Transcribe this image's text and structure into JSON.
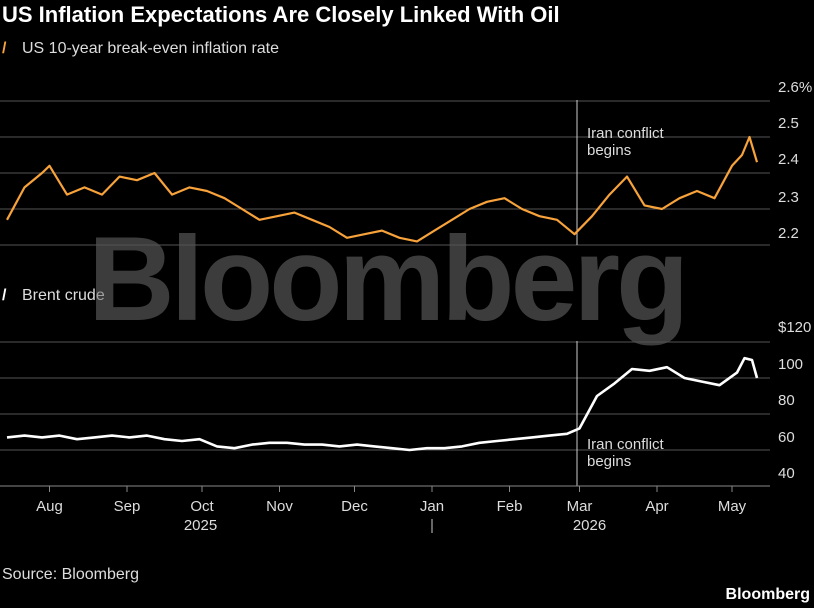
{
  "title": "US Inflation Expectations Are Closely Linked With Oil",
  "source": "Source: Bloomberg",
  "brand": "Bloomberg",
  "watermark": "Bloomberg",
  "colors": {
    "breakeven": "#f7a23b",
    "brent": "#ffffff",
    "grid": "#555555",
    "background": "#000000"
  },
  "chart_data": [
    {
      "type": "line",
      "series": [
        {
          "name": "US 10-year break-even inflation rate",
          "color": "#f7a23b",
          "x": [
            "2025-07-15",
            "2025-07-22",
            "2025-07-29",
            "2025-08-01",
            "2025-08-08",
            "2025-08-15",
            "2025-08-22",
            "2025-08-29",
            "2025-09-05",
            "2025-09-12",
            "2025-09-19",
            "2025-09-26",
            "2025-10-03",
            "2025-10-10",
            "2025-10-17",
            "2025-10-24",
            "2025-10-31",
            "2025-11-07",
            "2025-11-14",
            "2025-11-21",
            "2025-11-28",
            "2025-12-05",
            "2025-12-12",
            "2025-12-19",
            "2025-12-26",
            "2026-01-02",
            "2026-01-09",
            "2026-01-16",
            "2026-01-23",
            "2026-01-30",
            "2026-02-06",
            "2026-02-13",
            "2026-02-20",
            "2026-02-27",
            "2026-03-06",
            "2026-03-13",
            "2026-03-20",
            "2026-03-27",
            "2026-04-03",
            "2026-04-10",
            "2026-04-17",
            "2026-04-24",
            "2026-05-01",
            "2026-05-05",
            "2026-05-08",
            "2026-05-11"
          ],
          "values": [
            2.27,
            2.36,
            2.4,
            2.42,
            2.34,
            2.36,
            2.34,
            2.39,
            2.38,
            2.4,
            2.34,
            2.36,
            2.35,
            2.33,
            2.3,
            2.27,
            2.28,
            2.29,
            2.27,
            2.25,
            2.22,
            2.23,
            2.24,
            2.22,
            2.21,
            2.24,
            2.27,
            2.3,
            2.32,
            2.33,
            2.3,
            2.28,
            2.27,
            2.23,
            2.28,
            2.34,
            2.39,
            2.31,
            2.3,
            2.33,
            2.35,
            2.33,
            2.42,
            2.45,
            2.5,
            2.43
          ]
        }
      ],
      "ylabels": [
        "2.6%",
        "2.5",
        "2.4",
        "2.3",
        "2.2"
      ],
      "ylim": [
        2.2,
        2.6
      ],
      "annotation": {
        "text": [
          "Iran conflict",
          "begins"
        ],
        "x": "2026-02-28"
      }
    },
    {
      "type": "line",
      "series": [
        {
          "name": "Brent crude",
          "color": "#ffffff",
          "x": [
            "2025-07-15",
            "2025-07-22",
            "2025-07-29",
            "2025-08-05",
            "2025-08-12",
            "2025-08-19",
            "2025-08-26",
            "2025-09-02",
            "2025-09-09",
            "2025-09-16",
            "2025-09-23",
            "2025-09-30",
            "2025-10-07",
            "2025-10-14",
            "2025-10-21",
            "2025-10-28",
            "2025-11-04",
            "2025-11-11",
            "2025-11-18",
            "2025-11-25",
            "2025-12-02",
            "2025-12-09",
            "2025-12-16",
            "2025-12-23",
            "2025-12-30",
            "2026-01-06",
            "2026-01-13",
            "2026-01-20",
            "2026-01-27",
            "2026-02-03",
            "2026-02-10",
            "2026-02-17",
            "2026-02-24",
            "2026-03-01",
            "2026-03-08",
            "2026-03-15",
            "2026-03-22",
            "2026-03-29",
            "2026-04-05",
            "2026-04-12",
            "2026-04-19",
            "2026-04-26",
            "2026-05-03",
            "2026-05-06",
            "2026-05-09",
            "2026-05-11"
          ],
          "values": [
            67,
            68,
            67,
            68,
            66,
            67,
            68,
            67,
            68,
            66,
            65,
            66,
            62,
            61,
            63,
            64,
            64,
            63,
            63,
            62,
            63,
            62,
            61,
            60,
            61,
            61,
            62,
            64,
            65,
            66,
            67,
            68,
            69,
            72,
            90,
            97,
            105,
            104,
            106,
            100,
            98,
            96,
            103,
            111,
            110,
            100
          ]
        }
      ],
      "ylabels": [
        "$120",
        "100",
        "80",
        "60",
        "40"
      ],
      "ylim": [
        40,
        120
      ],
      "annotation": {
        "text": [
          "Iran conflict",
          "begins"
        ],
        "x": "2026-02-28"
      }
    }
  ],
  "x_axis": {
    "months": [
      {
        "label": "Aug",
        "date": "2025-08-01"
      },
      {
        "label": "Sep",
        "date": "2025-09-01"
      },
      {
        "label": "Oct",
        "date": "2025-10-01"
      },
      {
        "label": "Nov",
        "date": "2025-11-01"
      },
      {
        "label": "Dec",
        "date": "2025-12-01"
      },
      {
        "label": "Jan",
        "date": "2026-01-01"
      },
      {
        "label": "Feb",
        "date": "2026-02-01"
      },
      {
        "label": "Mar",
        "date": "2026-03-01"
      },
      {
        "label": "Apr",
        "date": "2026-04-01"
      },
      {
        "label": "May",
        "date": "2026-05-01"
      }
    ],
    "years": [
      "2025",
      "2026"
    ],
    "range": [
      "2025-07-15",
      "2026-05-15"
    ]
  }
}
